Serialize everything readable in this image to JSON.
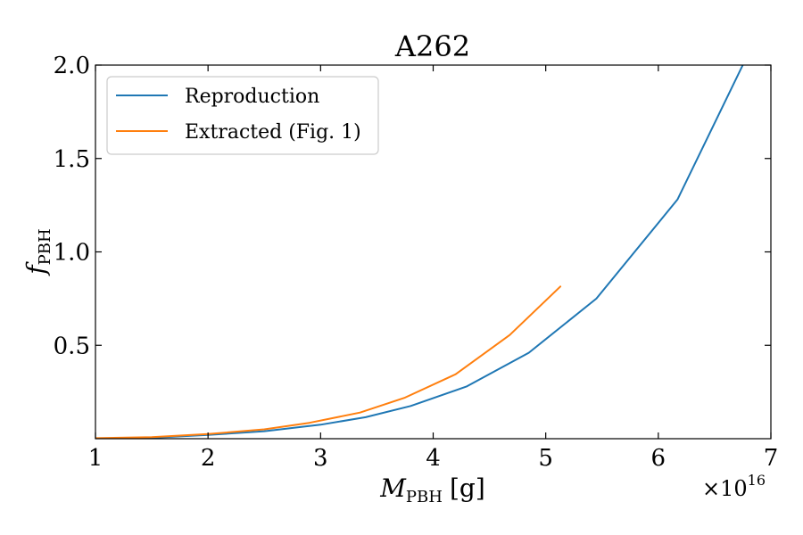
{
  "chart_data": {
    "type": "line",
    "title": "A262",
    "xlabel": {
      "main": "M",
      "sub": "PBH",
      "unit": "[g]"
    },
    "ylabel": {
      "main": "f",
      "sub": "PBH"
    },
    "x_multiplier": {
      "prefix": "×10",
      "exponent": "16"
    },
    "xlim": [
      1,
      7
    ],
    "ylim": [
      0,
      2.0
    ],
    "xticks": [
      {
        "value": 1,
        "label": "1"
      },
      {
        "value": 2,
        "label": "2"
      },
      {
        "value": 3,
        "label": "3"
      },
      {
        "value": 4,
        "label": "4"
      },
      {
        "value": 5,
        "label": "5"
      },
      {
        "value": 6,
        "label": "6"
      },
      {
        "value": 7,
        "label": "7"
      }
    ],
    "yticks": [
      {
        "value": 0.5,
        "label": "0.5"
      },
      {
        "value": 1.0,
        "label": "1.0"
      },
      {
        "value": 1.5,
        "label": "1.5"
      },
      {
        "value": 2.0,
        "label": "2.0"
      }
    ],
    "legend_position": "top-left",
    "grid": false,
    "series": [
      {
        "name": "Reproduction",
        "color": "#1f77b4",
        "x": [
          1.0,
          1.5,
          2.0,
          2.5,
          3.0,
          3.4,
          3.8,
          4.3,
          4.85,
          5.45,
          6.17,
          6.75
        ],
        "y": [
          0.0,
          0.005,
          0.02,
          0.04,
          0.075,
          0.115,
          0.175,
          0.28,
          0.46,
          0.75,
          1.28,
          2.0
        ]
      },
      {
        "name": "Extracted (Fig. 1)",
        "color": "#ff7f0e",
        "x": [
          1.0,
          1.5,
          2.0,
          2.5,
          2.9,
          3.35,
          3.75,
          4.2,
          4.68,
          5.13
        ],
        "y": [
          0.003,
          0.008,
          0.025,
          0.05,
          0.085,
          0.14,
          0.22,
          0.345,
          0.555,
          0.815
        ]
      }
    ]
  }
}
